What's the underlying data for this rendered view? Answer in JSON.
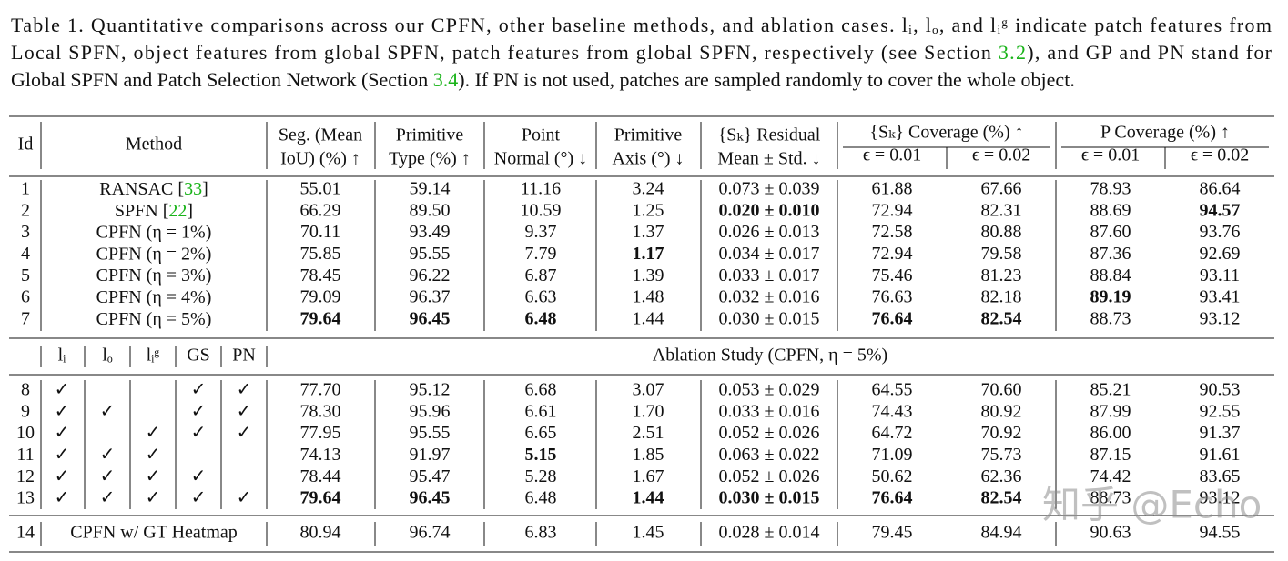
{
  "caption": {
    "lines": [
      [
        {
          "text": "Table 1.  Quantitative comparisons across our CPFN, other baseline methods, and ablation cases. lᵢ, lₒ, and lᵢᵍ indicate patch features from"
        }
      ],
      [
        {
          "text": "Local SPFN, object features from global SPFN, patch features from global SPFN, respectively (see Section "
        },
        {
          "ref": "3.2"
        },
        {
          "text": "), and GP and PN stand for"
        }
      ],
      [
        {
          "text": "Global SPFN and Patch Selection Network (Section "
        },
        {
          "ref": "3.4"
        },
        {
          "text": "). If PN is not used, patches are sampled randomly to cover the whole object."
        }
      ]
    ]
  },
  "table": {
    "header": {
      "id": "Id",
      "method": "Method",
      "columns": [
        [
          "Seg. (Mean",
          "IoU) (%) ↑"
        ],
        [
          "Primitive",
          "Type (%) ↑"
        ],
        [
          "Point",
          "Normal (°) ↓"
        ],
        [
          "Primitive",
          "Axis (°) ↓"
        ],
        [
          "{Sₖ} Residual",
          "Mean ± Std. ↓"
        ]
      ],
      "groups": [
        {
          "name": "{Sₖ} Coverage (%) ↑",
          "sub": [
            "ϵ = 0.01",
            "ϵ = 0.02"
          ]
        },
        {
          "name": "P Coverage (%) ↑",
          "sub": [
            "ϵ = 0.01",
            "ϵ = 0.02"
          ]
        }
      ]
    },
    "rows": [
      {
        "id": "1",
        "method": [
          {
            "text": "RANSAC ["
          },
          {
            "ref": "33"
          },
          {
            "text": "]"
          }
        ],
        "values": [
          "55.01",
          "59.14",
          "11.16",
          "3.24",
          "0.073 ± 0.039",
          "61.88",
          "67.66",
          "78.93",
          "86.64"
        ],
        "bold": []
      },
      {
        "id": "2",
        "method": [
          {
            "text": "SPFN ["
          },
          {
            "ref": "22"
          },
          {
            "text": "]"
          }
        ],
        "values": [
          "66.29",
          "89.50",
          "10.59",
          "1.25",
          "0.020 ± 0.010",
          "72.94",
          "82.31",
          "88.69",
          "94.57"
        ],
        "bold": [
          4,
          8
        ]
      },
      {
        "id": "3",
        "method": [
          {
            "text": "CPFN (η = 1%)"
          }
        ],
        "values": [
          "70.11",
          "93.49",
          "9.37",
          "1.37",
          "0.026 ± 0.013",
          "72.58",
          "80.88",
          "87.60",
          "93.76"
        ],
        "bold": []
      },
      {
        "id": "4",
        "method": [
          {
            "text": "CPFN (η = 2%)"
          }
        ],
        "values": [
          "75.85",
          "95.55",
          "7.79",
          "1.17",
          "0.034 ± 0.017",
          "72.94",
          "79.58",
          "87.36",
          "92.69"
        ],
        "bold": [
          3
        ]
      },
      {
        "id": "5",
        "method": [
          {
            "text": "CPFN (η = 3%)"
          }
        ],
        "values": [
          "78.45",
          "96.22",
          "6.87",
          "1.39",
          "0.033 ± 0.017",
          "75.46",
          "81.23",
          "88.84",
          "93.11"
        ],
        "bold": []
      },
      {
        "id": "6",
        "method": [
          {
            "text": "CPFN (η = 4%)"
          }
        ],
        "values": [
          "79.09",
          "96.37",
          "6.63",
          "1.48",
          "0.032 ± 0.016",
          "76.63",
          "82.18",
          "89.19",
          "93.41"
        ],
        "bold": [
          7
        ]
      },
      {
        "id": "7",
        "method": [
          {
            "text": "CPFN (η = 5%)"
          }
        ],
        "values": [
          "79.64",
          "96.45",
          "6.48",
          "1.44",
          "0.030 ± 0.015",
          "76.64",
          "82.54",
          "88.73",
          "93.12"
        ],
        "bold": [
          0,
          1,
          2,
          5,
          6
        ]
      }
    ],
    "ablation_header": {
      "features": [
        "lᵢ",
        "lₒ",
        "lᵢᵍ",
        "GS",
        "PN"
      ],
      "title": "Ablation Study (CPFN, η = 5%)"
    },
    "ablation_rows": [
      {
        "id": "8",
        "checks": [
          "✓",
          null,
          null,
          "✓",
          "✓"
        ],
        "values": [
          "77.70",
          "95.12",
          "6.68",
          "3.07",
          "0.053 ± 0.029",
          "64.55",
          "70.60",
          "85.21",
          "90.53"
        ],
        "bold": []
      },
      {
        "id": "9",
        "checks": [
          "✓",
          "✓",
          null,
          "✓",
          "✓"
        ],
        "values": [
          "78.30",
          "95.96",
          "6.61",
          "1.70",
          "0.033 ± 0.016",
          "74.43",
          "80.92",
          "87.99",
          "92.55"
        ],
        "bold": []
      },
      {
        "id": "10",
        "checks": [
          "✓",
          null,
          "✓",
          "✓",
          "✓"
        ],
        "values": [
          "77.95",
          "95.55",
          "6.65",
          "2.51",
          "0.052 ± 0.026",
          "64.72",
          "70.92",
          "86.00",
          "91.37"
        ],
        "bold": []
      },
      {
        "id": "11",
        "checks": [
          "✓",
          "✓",
          "✓",
          null,
          null
        ],
        "values": [
          "74.13",
          "91.97",
          "5.15",
          "1.85",
          "0.063 ± 0.022",
          "71.09",
          "75.73",
          "87.15",
          "91.61"
        ],
        "bold": [
          2
        ]
      },
      {
        "id": "12",
        "checks": [
          "✓",
          "✓",
          "✓",
          "✓",
          null
        ],
        "values": [
          "78.44",
          "95.47",
          "5.28",
          "1.67",
          "0.052 ± 0.026",
          "50.62",
          "62.36",
          "74.42",
          "83.65"
        ],
        "bold": []
      },
      {
        "id": "13",
        "checks": [
          "✓",
          "✓",
          "✓",
          "✓",
          "✓"
        ],
        "values": [
          "79.64",
          "96.45",
          "6.48",
          "1.44",
          "0.030 ± 0.015",
          "76.64",
          "82.54",
          "88.73",
          "93.12"
        ],
        "bold": [
          0,
          1,
          3,
          4,
          5,
          6
        ]
      }
    ],
    "final_row": {
      "id": "14",
      "method": "CPFN w/ GT Heatmap",
      "values": [
        "80.94",
        "96.74",
        "6.83",
        "1.45",
        "0.028 ± 0.014",
        "79.45",
        "84.94",
        "90.63",
        "94.55"
      ]
    }
  },
  "watermark": "知乎 @Echo"
}
